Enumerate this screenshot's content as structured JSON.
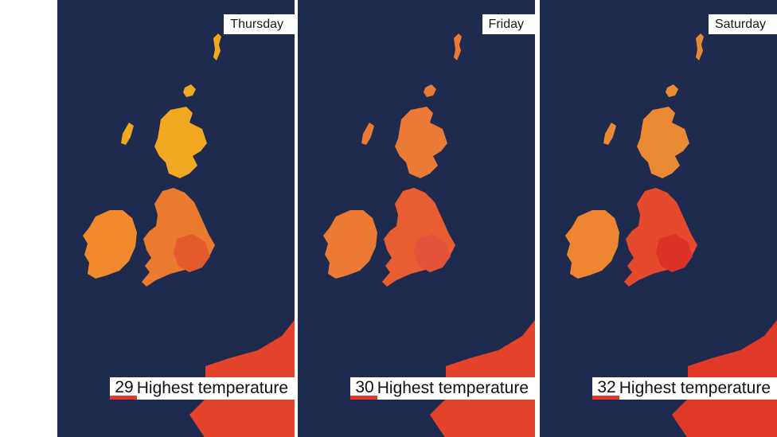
{
  "panels": [
    {
      "day": "Thursday",
      "temperature": "29",
      "caption": "Highest temperature",
      "colors": {
        "scotland": "#f0a820",
        "england": "#ea7a2e",
        "ireland": "#f08a2c",
        "hot": "#e55a2c",
        "france": "#e4432b"
      }
    },
    {
      "day": "Friday",
      "temperature": "30",
      "caption": "Highest temperature",
      "colors": {
        "scotland": "#ea7a35",
        "england": "#e85e32",
        "ireland": "#ec7a32",
        "hot": "#e4523a",
        "france": "#e4432b"
      }
    },
    {
      "day": "Saturday",
      "temperature": "32",
      "caption": "Highest temperature",
      "colors": {
        "scotland": "#ea8a32",
        "england": "#e64a2c",
        "ireland": "#ee8530",
        "hot": "#dc3226",
        "france": "#df3a28"
      }
    }
  ],
  "sea_color": "#1f2b4e"
}
